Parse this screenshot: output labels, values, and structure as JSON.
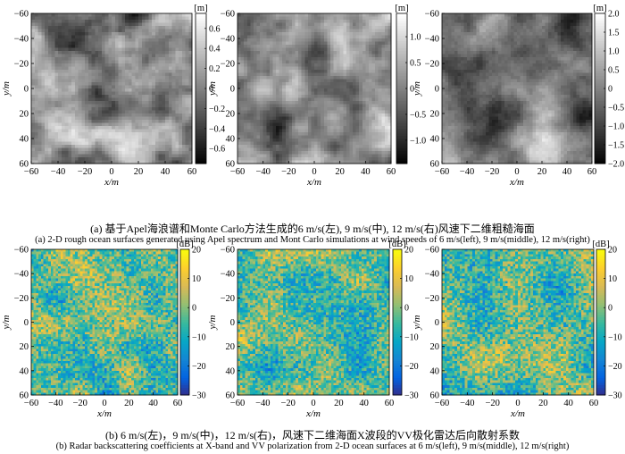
{
  "captions": {
    "a_zh": "(a) 基于Apel海浪谱和Monte Carlo方法生成的6 m/s(左), 9 m/s(中), 12 m/s(右)风速下二维粗糙海面",
    "a_en": "(a) 2-D rough ocean surfaces generated using Apel spectrum and Mont Carlo simulations at wind speeds of 6 m/s(left), 9 m/s(middle), 12 m/s(right)",
    "b_zh": "(b) 6 m/s(左)，9 m/s(中)，12 m/s(右)，风速下二维海面X波段的VV极化雷达后向散射系数",
    "b_en": "(b) Radar backscattering coefficients at X-band and VV polarization from 2-D ocean surfaces at 6 m/s(left), 9 m/s(middle), 12 m/s(right)"
  },
  "colors": {
    "gray_low": "#000000",
    "gray_high": "#ffffff",
    "parula": [
      "#352a87",
      "#0363e1",
      "#1485d4",
      "#06a7c6",
      "#38b99e",
      "#92bf73",
      "#d9ba56",
      "#fcce2e",
      "#f9fb0e"
    ]
  },
  "chart_data": [
    {
      "id": "a-left",
      "type": "heatmap",
      "colormap": "gray",
      "wind_speed": "6 m/s",
      "xlabel": "x/m",
      "ylabel": "y/m",
      "xlim": [
        -60,
        60
      ],
      "ylim": [
        -60,
        60
      ],
      "y_reversed": true,
      "xticks": [
        "−60",
        "−40",
        "−20",
        "0",
        "20",
        "40",
        "60"
      ],
      "yticks": [
        "−60",
        "−40",
        "−20",
        "0",
        "20",
        "40",
        "60"
      ],
      "colorbar_label": "[m]",
      "clim": [
        -0.75,
        0.75
      ],
      "colorbar_ticks": [
        {
          "v": 0.6,
          "t": "0.6"
        },
        {
          "v": 0.4,
          "t": "0.4"
        },
        {
          "v": 0.2,
          "t": "0.2"
        },
        {
          "v": 0,
          "t": "0"
        },
        {
          "v": -0.2,
          "t": "−0.2"
        },
        {
          "v": -0.4,
          "t": "−0.4"
        },
        {
          "v": -0.6,
          "t": "−0.6"
        }
      ]
    },
    {
      "id": "a-mid",
      "type": "heatmap",
      "colormap": "gray",
      "wind_speed": "9 m/s",
      "xlabel": "x/m",
      "ylabel": "y/m",
      "xlim": [
        -60,
        60
      ],
      "ylim": [
        -60,
        60
      ],
      "y_reversed": true,
      "xticks": [
        "−60",
        "−40",
        "−20",
        "0",
        "20",
        "40",
        "60"
      ],
      "yticks": [
        "−60",
        "−40",
        "−20",
        "0",
        "20",
        "40",
        "60"
      ],
      "colorbar_label": "[m]",
      "clim": [
        -1.45,
        1.45
      ],
      "colorbar_ticks": [
        {
          "v": 1.0,
          "t": "1.0"
        },
        {
          "v": 0.5,
          "t": "0.5"
        },
        {
          "v": 0,
          "t": "0"
        },
        {
          "v": -0.5,
          "t": "−0.5"
        },
        {
          "v": -1.0,
          "t": "−1.0"
        }
      ]
    },
    {
      "id": "a-right",
      "type": "heatmap",
      "colormap": "gray",
      "wind_speed": "12 m/s",
      "xlabel": "x/m",
      "ylabel": "y/m",
      "xlim": [
        -60,
        60
      ],
      "ylim": [
        -60,
        60
      ],
      "y_reversed": true,
      "xticks": [
        "−60",
        "−40",
        "−20",
        "0",
        "20",
        "40",
        "60"
      ],
      "yticks": [
        "−60",
        "−40",
        "−20",
        "0",
        "20",
        "40",
        "60"
      ],
      "colorbar_label": "[m]",
      "clim": [
        -2.0,
        2.0
      ],
      "colorbar_ticks": [
        {
          "v": 2.0,
          "t": "2.0"
        },
        {
          "v": 1.5,
          "t": "1.5"
        },
        {
          "v": 1.0,
          "t": "1.0"
        },
        {
          "v": 0.5,
          "t": "0.5"
        },
        {
          "v": 0,
          "t": "0"
        },
        {
          "v": -0.5,
          "t": "−0.5"
        },
        {
          "v": -1.0,
          "t": "−1.0"
        },
        {
          "v": -1.5,
          "t": "−1.5"
        },
        {
          "v": -2.0,
          "t": "−2.0"
        }
      ]
    },
    {
      "id": "b-left",
      "type": "heatmap",
      "colormap": "parula",
      "wind_speed": "6 m/s",
      "xlabel": "x/m",
      "ylabel": "y/m",
      "xlim": [
        -60,
        60
      ],
      "ylim": [
        -60,
        60
      ],
      "y_reversed": true,
      "xticks": [
        "−60",
        "−40",
        "−20",
        "0",
        "20",
        "40",
        "60"
      ],
      "yticks": [
        "−60",
        "−40",
        "−20",
        "0",
        "20",
        "40",
        "60"
      ],
      "colorbar_label": "[dB]",
      "clim": [
        -30,
        20
      ],
      "colorbar_ticks": [
        {
          "v": 20,
          "t": "20"
        },
        {
          "v": 10,
          "t": "10"
        },
        {
          "v": 0,
          "t": "0"
        },
        {
          "v": -10,
          "t": "−10"
        },
        {
          "v": -20,
          "t": "−20"
        },
        {
          "v": -30,
          "t": "−30"
        }
      ]
    },
    {
      "id": "b-mid",
      "type": "heatmap",
      "colormap": "parula",
      "wind_speed": "9 m/s",
      "xlabel": "x/m",
      "ylabel": "y/m",
      "xlim": [
        -60,
        60
      ],
      "ylim": [
        -60,
        60
      ],
      "y_reversed": true,
      "xticks": [
        "−60",
        "−40",
        "−20",
        "0",
        "20",
        "40",
        "60"
      ],
      "yticks": [
        "−60",
        "−40",
        "−20",
        "0",
        "20",
        "40",
        "60"
      ],
      "colorbar_label": "[dB]",
      "clim": [
        -30,
        20
      ],
      "colorbar_ticks": [
        {
          "v": 20,
          "t": "20"
        },
        {
          "v": 10,
          "t": "10"
        },
        {
          "v": 0,
          "t": "0"
        },
        {
          "v": -10,
          "t": "−10"
        },
        {
          "v": -20,
          "t": "−20"
        },
        {
          "v": -30,
          "t": "−30"
        }
      ]
    },
    {
      "id": "b-right",
      "type": "heatmap",
      "colormap": "parula",
      "wind_speed": "12 m/s",
      "xlabel": "x/m",
      "ylabel": "y/m",
      "xlim": [
        -60,
        60
      ],
      "ylim": [
        -60,
        60
      ],
      "y_reversed": true,
      "xticks": [
        "−60",
        "−40",
        "−20",
        "0",
        "20",
        "40",
        "60"
      ],
      "yticks": [
        "−60",
        "−40",
        "−20",
        "0",
        "20",
        "40",
        "60"
      ],
      "colorbar_label": "[dB]",
      "clim": [
        -30,
        20
      ],
      "colorbar_ticks": [
        {
          "v": 20,
          "t": "20"
        },
        {
          "v": 10,
          "t": "10"
        },
        {
          "v": 0,
          "t": "0"
        },
        {
          "v": -10,
          "t": "−10"
        },
        {
          "v": -20,
          "t": "−20"
        },
        {
          "v": -30,
          "t": "−30"
        }
      ]
    }
  ]
}
